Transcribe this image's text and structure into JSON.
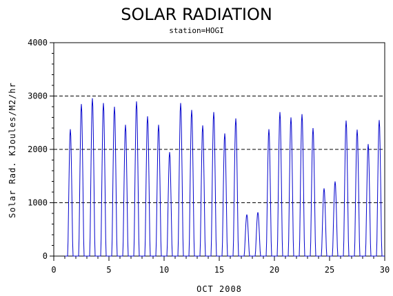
{
  "chart_data": {
    "type": "line",
    "title": "SOLAR RADIATION",
    "subtitle": "station=HOGI",
    "xlabel": "OCT 2008",
    "ylabel": "Solar Rad. KJoules/M2/hr",
    "xlim": [
      0,
      30
    ],
    "ylim": [
      0,
      4000
    ],
    "x_ticks": [
      0,
      5,
      10,
      15,
      20,
      25,
      30
    ],
    "y_ticks": [
      0,
      1000,
      2000,
      3000,
      4000
    ],
    "grid": "horizontal-dashed",
    "line_color": "#0000cc",
    "series": [
      {
        "daily_peaks": [
          {
            "day": 1,
            "peak": 2380
          },
          {
            "day": 2,
            "peak": 2850
          },
          {
            "day": 3,
            "peak": 2960
          },
          {
            "day": 4,
            "peak": 2870
          },
          {
            "day": 5,
            "peak": 2800
          },
          {
            "day": 6,
            "peak": 2460
          },
          {
            "day": 7,
            "peak": 2900
          },
          {
            "day": 8,
            "peak": 2620
          },
          {
            "day": 9,
            "peak": 2460
          },
          {
            "day": 10,
            "peak": 1950
          },
          {
            "day": 11,
            "peak": 2870
          },
          {
            "day": 12,
            "peak": 2740
          },
          {
            "day": 13,
            "peak": 2450
          },
          {
            "day": 14,
            "peak": 2700
          },
          {
            "day": 15,
            "peak": 2300
          },
          {
            "day": 16,
            "peak": 2580
          },
          {
            "day": 17,
            "peak": 780
          },
          {
            "day": 18,
            "peak": 820
          },
          {
            "day": 19,
            "peak": 2380
          },
          {
            "day": 20,
            "peak": 2700
          },
          {
            "day": 21,
            "peak": 2600
          },
          {
            "day": 22,
            "peak": 2660
          },
          {
            "day": 23,
            "peak": 2400
          },
          {
            "day": 24,
            "peak": 1270
          },
          {
            "day": 25,
            "peak": 1400
          },
          {
            "day": 26,
            "peak": 2540
          },
          {
            "day": 27,
            "peak": 2370
          },
          {
            "day": 28,
            "peak": 2100
          },
          {
            "day": 29,
            "peak": 2550
          }
        ]
      }
    ]
  }
}
